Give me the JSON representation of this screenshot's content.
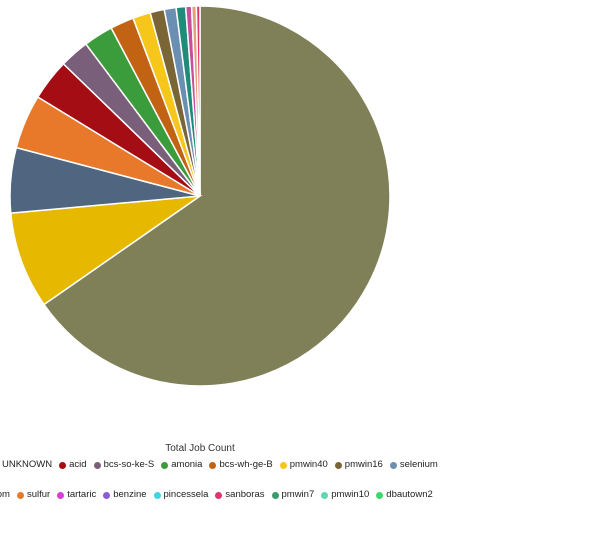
{
  "chart_data": {
    "type": "pie",
    "title": "Total Job Count",
    "slices": [
      {
        "label": "",
        "value": 65.0,
        "color": "#808058"
      },
      {
        "label": "",
        "value": 8.2,
        "color": "#e6b800"
      },
      {
        "label": "",
        "value": 5.5,
        "color": "#4f6580"
      },
      {
        "label": "",
        "value": 4.6,
        "color": "#e8792b"
      },
      {
        "label": "",
        "value": 3.5,
        "color": "#a50d14"
      },
      {
        "label": "",
        "value": 2.5,
        "color": "#7a5f7a"
      },
      {
        "label": "",
        "value": 2.5,
        "color": "#3a9c3a"
      },
      {
        "label": "",
        "value": 2.0,
        "color": "#c26314"
      },
      {
        "label": "",
        "value": 1.5,
        "color": "#f7c61b"
      },
      {
        "label": "",
        "value": 1.2,
        "color": "#7a6536"
      },
      {
        "label": "",
        "value": 1.0,
        "color": "#6b8fb3"
      },
      {
        "label": "",
        "value": 0.8,
        "color": "#1f8c7a"
      },
      {
        "label": "",
        "value": 0.5,
        "color": "#c84e9b"
      },
      {
        "label": "",
        "value": 0.4,
        "color": "#e7a17a"
      },
      {
        "label": "",
        "value": 0.3,
        "color": "#e0346e"
      }
    ],
    "legend": [
      {
        "label": "UNKNOWN",
        "color": "#808058"
      },
      {
        "label": "acid",
        "color": "#a50d14"
      },
      {
        "label": "bcs-so-ke-S",
        "color": "#7a5f7a"
      },
      {
        "label": "amonia",
        "color": "#3a9c3a"
      },
      {
        "label": "bcs-wh-ge-B",
        "color": "#c26314"
      },
      {
        "label": "pmwin40",
        "color": "#f7c61b"
      },
      {
        "label": "pmwin16",
        "color": "#7a6536"
      },
      {
        "label": "selenium",
        "color": "#6b8fb3"
      },
      {
        "label": "com",
        "color": "#4f6580"
      },
      {
        "label": "sulfur",
        "color": "#e8792b"
      },
      {
        "label": "tartaric",
        "color": "#d63fd6"
      },
      {
        "label": "benzine",
        "color": "#8a5cd6"
      },
      {
        "label": "pincessela",
        "color": "#3fd6e0"
      },
      {
        "label": "sanboras",
        "color": "#e0346e"
      },
      {
        "label": "pmwin7",
        "color": "#3a9c6a"
      },
      {
        "label": "pmwin10",
        "color": "#5fd6b0"
      },
      {
        "label": "dbautown2",
        "color": "#3fd66a"
      }
    ],
    "legend_rows": [
      8,
      9
    ],
    "legend_position": "bottom"
  }
}
